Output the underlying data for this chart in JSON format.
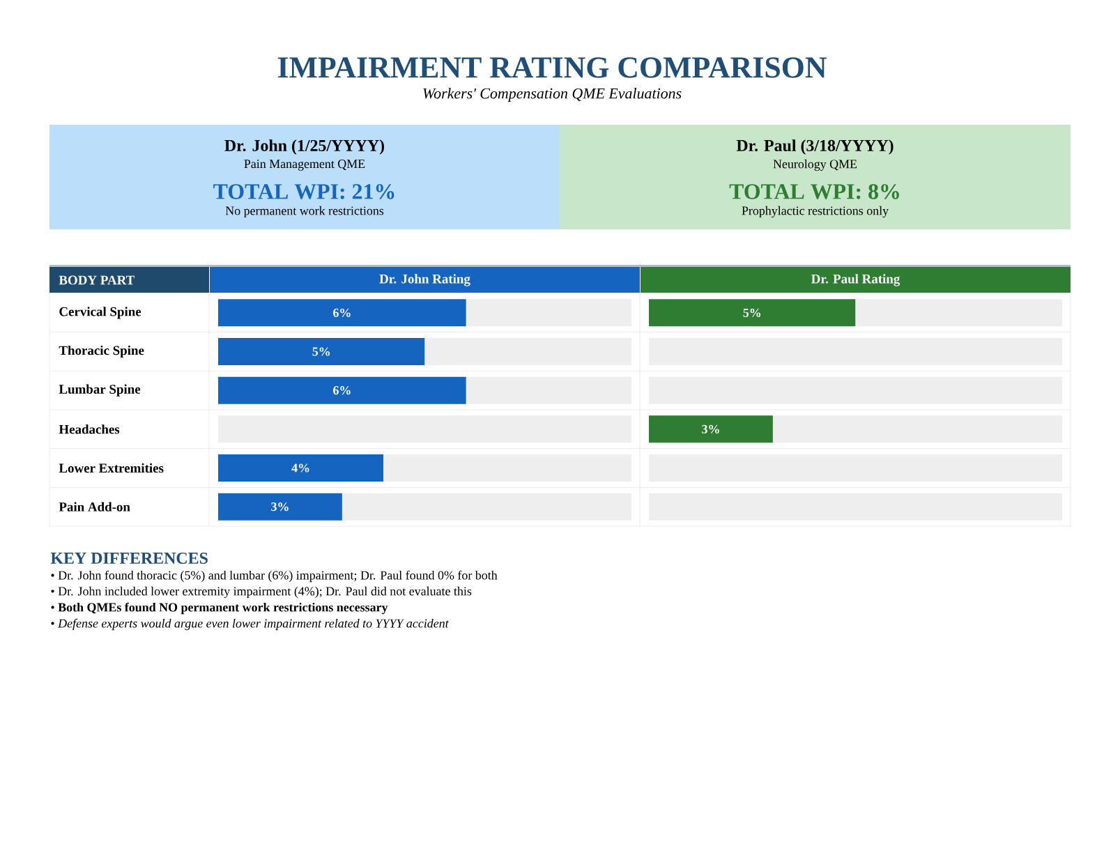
{
  "chart_data": [
    {
      "type": "other",
      "title": "IMPAIRMENT RATING COMPARISON",
      "subtitle": "Workers' Compensation QME Evaluations",
      "color": "#1f4e79"
    },
    {
      "type": "other",
      "title": "Dr. John (1/25/YYYY)",
      "subtitle": "Pain Management QME",
      "annotations": [
        "TOTAL WPI: 21%",
        "No permanent work restrictions"
      ],
      "color": "#1565c0",
      "colors": [
        "#bbdefb"
      ]
    },
    {
      "type": "other",
      "title": "Dr. Paul (3/18/YYYY)",
      "subtitle": "Neurology QME",
      "annotations": [
        "TOTAL WPI: 8%",
        "Prophylactic restrictions only"
      ],
      "color": "#2e7d32",
      "colors": [
        "#c8e6c9"
      ]
    },
    {
      "type": "bar",
      "orientation": "horizontal",
      "title": "Dr. John Rating",
      "ylabel": "BODY PART",
      "categories": [
        "Cervical Spine",
        "Thoracic Spine",
        "Lumbar Spine",
        "Headaches",
        "Lower Extremities",
        "Pain Add-on"
      ],
      "xlim": [
        0,
        10
      ],
      "tick_labels": "y",
      "stacked": true,
      "series": [
        {
          "color": "#1565c0",
          "values": [
            6,
            5,
            6,
            null,
            4,
            3
          ],
          "value_labels": [
            "6%",
            "5%",
            "6%",
            null,
            "4%",
            "3%"
          ]
        },
        {
          "color": "#eeeeee",
          "values": [
            4,
            5,
            4,
            10,
            6,
            7
          ]
        }
      ]
    },
    {
      "type": "bar",
      "orientation": "horizontal",
      "title": "Dr. Paul Rating",
      "categories": [
        null,
        null,
        null,
        null,
        null,
        null
      ],
      "xlim": [
        0,
        10
      ],
      "tick_labels": false,
      "stacked": true,
      "series": [
        {
          "color": "#2e7d32",
          "values": [
            5,
            null,
            null,
            3,
            null,
            null
          ],
          "value_labels": [
            "5%",
            null,
            null,
            "3%",
            null,
            null
          ]
        },
        {
          "color": "#eeeeee",
          "values": [
            5,
            10,
            10,
            7,
            10,
            10
          ]
        }
      ]
    },
    {
      "type": "other",
      "title": "KEY DIFFERENCES",
      "color": "#1f4e79",
      "annotations": [
        "• Dr. John found thoracic (5%) and lumbar (6%) impairment; Dr. Paul found 0% for both",
        "• Dr. John included lower extremity impairment (4%); Dr. Paul did not evaluate this",
        "• **Both QMEs found NO permanent work restrictions necessary**",
        "• *Defense experts would argue even lower impairment related to YYYY accident*"
      ]
    }
  ]
}
